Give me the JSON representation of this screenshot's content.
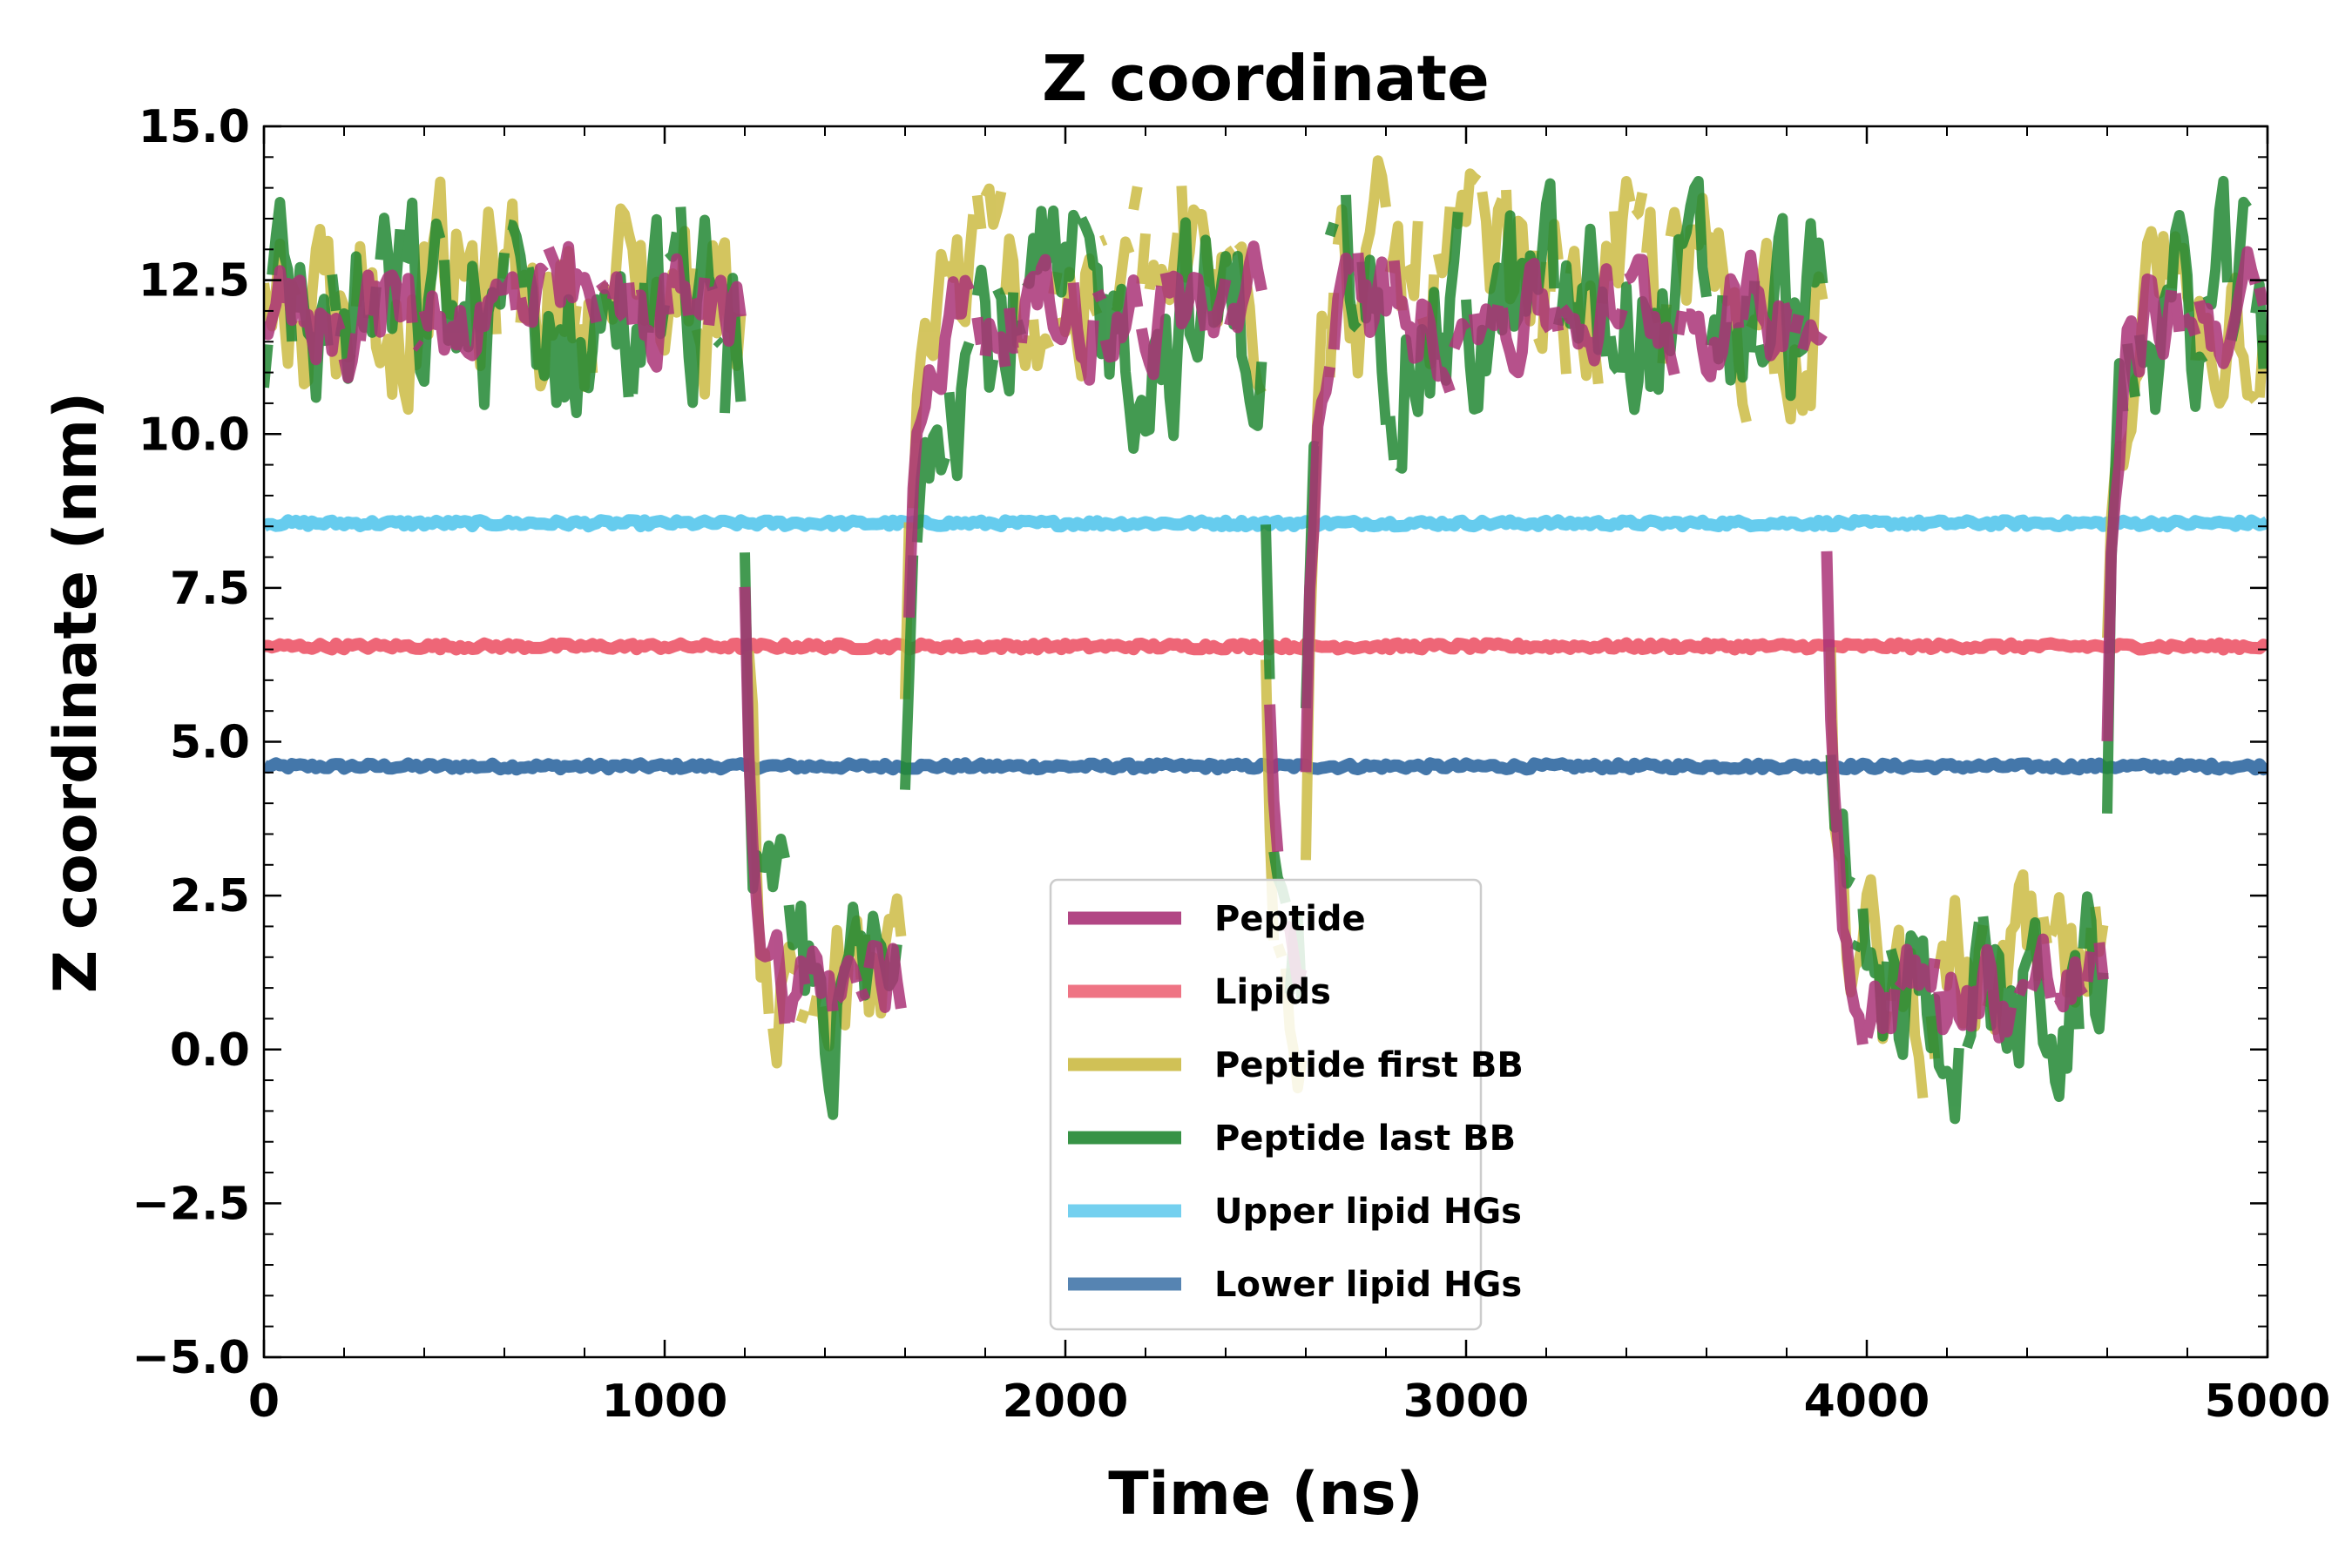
{
  "chart_data": {
    "type": "line",
    "title": "Z coordinate",
    "xlabel": "Time (ns)",
    "ylabel": "Z coordinate (nm)",
    "xlim": [
      0,
      5000
    ],
    "ylim": [
      -5.0,
      15.0
    ],
    "x_ticks": [
      0,
      1000,
      2000,
      3000,
      4000,
      5000
    ],
    "x_tick_labels": [
      "0",
      "1000",
      "2000",
      "3000",
      "4000",
      "5000"
    ],
    "y_ticks": [
      -5.0,
      -2.5,
      0.0,
      2.5,
      5.0,
      7.5,
      10.0,
      12.5,
      15.0
    ],
    "y_tick_labels": [
      "−5.0",
      "−2.5",
      "0.0",
      "2.5",
      "5.0",
      "7.5",
      "10.0",
      "12.5",
      "15.0"
    ],
    "grid": false,
    "legend_position": "lower-center",
    "x_step_ns": 10,
    "series": [
      {
        "name": "Peptide",
        "color": "#aa3377",
        "pattern": "bimodal-hopping",
        "upper_state_mean": 12.0,
        "upper_state_spread": 0.8,
        "lower_state_mean": 1.0,
        "lower_state_spread": 0.8,
        "upper_intervals": [
          [
            0,
            1200
          ],
          [
            1600,
            2500
          ],
          [
            2600,
            3900
          ],
          [
            4600,
            5000
          ]
        ]
      },
      {
        "name": "Lipids",
        "color": "#ee6677",
        "pattern": "flat",
        "mean": 6.55,
        "spread": 0.05
      },
      {
        "name": "Peptide first BB",
        "color": "#ccbb44",
        "pattern": "bimodal-hopping",
        "upper_state_mean": 12.3,
        "upper_state_spread": 1.5,
        "lower_state_mean": 0.9,
        "lower_state_spread": 1.4,
        "upper_intervals": [
          [
            0,
            1200
          ],
          [
            1600,
            2500
          ],
          [
            2600,
            3900
          ],
          [
            4600,
            5000
          ]
        ]
      },
      {
        "name": "Peptide last BB",
        "color": "#228833",
        "pattern": "bimodal-hopping",
        "upper_state_mean": 11.8,
        "upper_state_spread": 1.6,
        "lower_state_mean": 0.8,
        "lower_state_spread": 1.5,
        "upper_intervals": [
          [
            0,
            1200
          ],
          [
            1600,
            2500
          ],
          [
            2600,
            3900
          ],
          [
            4600,
            5000
          ]
        ]
      },
      {
        "name": "Upper lipid HGs",
        "color": "#66ccee",
        "pattern": "flat",
        "mean": 8.55,
        "spread": 0.05
      },
      {
        "name": "Lower lipid HGs",
        "color": "#4477aa",
        "pattern": "flat",
        "mean": 4.6,
        "spread": 0.05
      }
    ]
  }
}
